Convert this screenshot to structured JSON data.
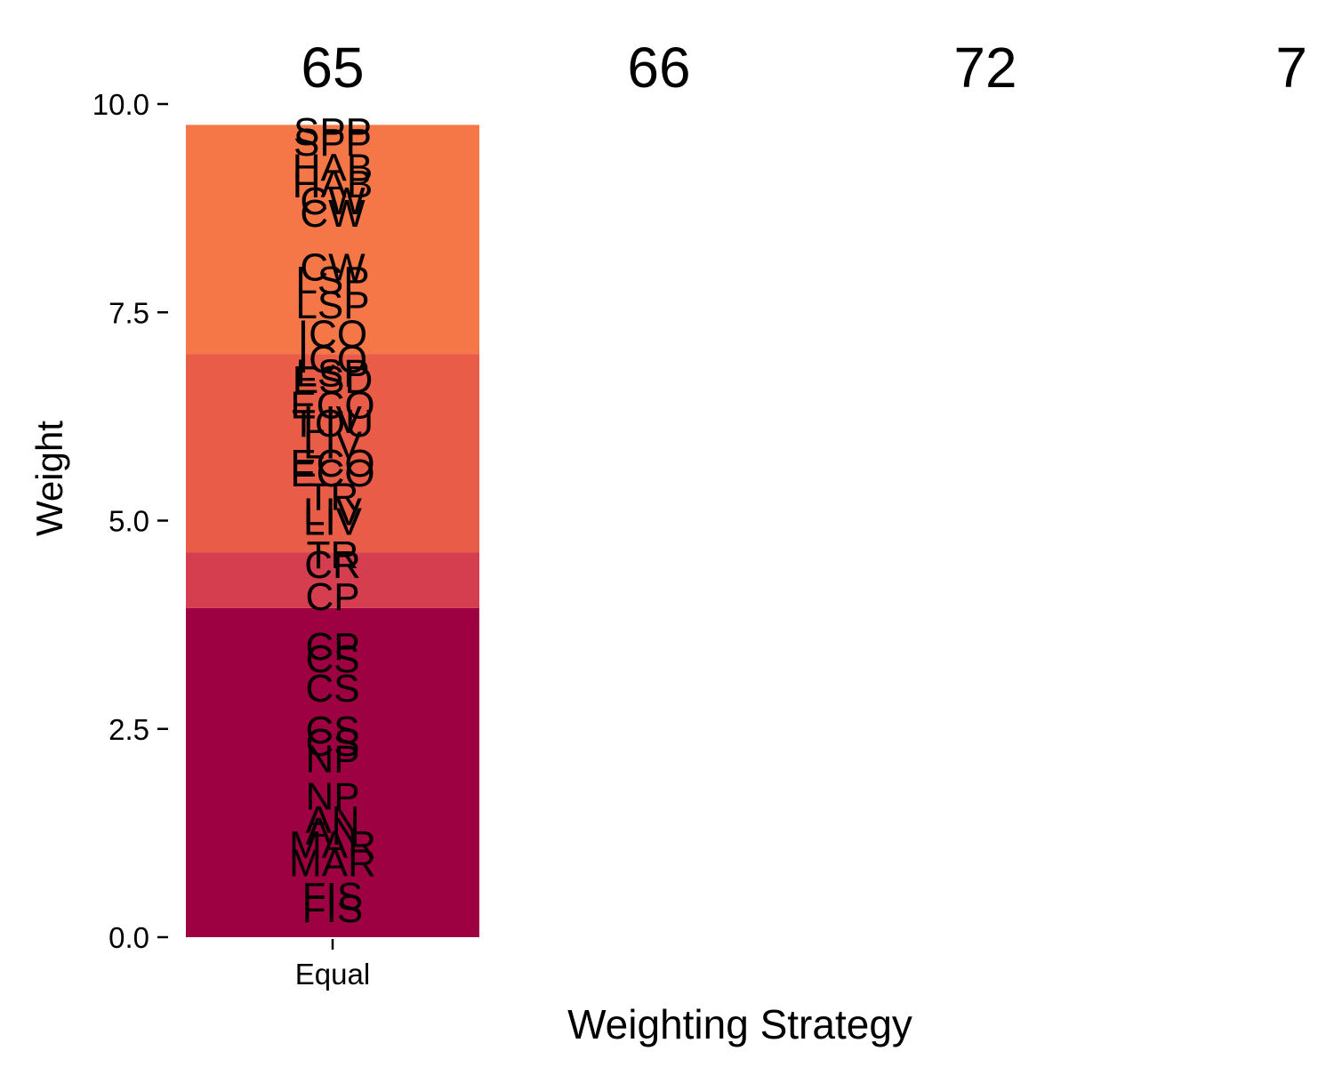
{
  "chart_data": {
    "type": "bar",
    "xlabel": "Weighting Strategy",
    "ylabel": "Weight",
    "ylim": [
      0,
      10
    ],
    "yticks": [
      "0.0",
      "2.5",
      "5.0",
      "7.5",
      "10.0"
    ],
    "ytick_values": [
      0,
      2.5,
      5,
      7.5,
      10
    ],
    "categories": [
      "Equal"
    ],
    "top_labels": [
      "65",
      "66",
      "72",
      "7"
    ],
    "stack_segments": [
      {
        "from": 0.0,
        "to": 3.95,
        "color": "#9e0142"
      },
      {
        "from": 3.95,
        "to": 4.62,
        "color": "#d53e4f"
      },
      {
        "from": 4.62,
        "to": 7.0,
        "color": "#e95c47"
      },
      {
        "from": 7.0,
        "to": 9.75,
        "color": "#f57748"
      }
    ],
    "labels": [
      {
        "text": "FIS",
        "y": 0.35
      },
      {
        "text": "FIS",
        "y": 0.5
      },
      {
        "text": "MAR",
        "y": 0.9
      },
      {
        "text": "MAR",
        "y": 1.12
      },
      {
        "text": "AN",
        "y": 1.28
      },
      {
        "text": "AN",
        "y": 1.42
      },
      {
        "text": "NP",
        "y": 1.7
      },
      {
        "text": "NP",
        "y": 2.15
      },
      {
        "text": "CS",
        "y": 2.35
      },
      {
        "text": "CS",
        "y": 2.5
      },
      {
        "text": "CS",
        "y": 3.0
      },
      {
        "text": "CS",
        "y": 3.35
      },
      {
        "text": "CP",
        "y": 3.5
      },
      {
        "text": "CP",
        "y": 4.1
      },
      {
        "text": "CR",
        "y": 4.48
      },
      {
        "text": "TR",
        "y": 4.6
      },
      {
        "text": "LIV",
        "y": 5.0
      },
      {
        "text": "LIV",
        "y": 5.12
      },
      {
        "text": "TR",
        "y": 5.3
      },
      {
        "text": "ECO",
        "y": 5.58
      },
      {
        "text": "ECO",
        "y": 5.7
      },
      {
        "text": "LIV",
        "y": 5.92
      },
      {
        "text": "LIV",
        "y": 6.22
      },
      {
        "text": "TOU",
        "y": 6.18
      },
      {
        "text": "ECO",
        "y": 6.4
      },
      {
        "text": "ESD",
        "y": 6.7
      },
      {
        "text": "LSP",
        "y": 6.78
      },
      {
        "text": "ICO",
        "y": 6.95
      },
      {
        "text": "ICO",
        "y": 7.25
      },
      {
        "text": "LSP",
        "y": 7.6
      },
      {
        "text": "LSP",
        "y": 7.9
      },
      {
        "text": "CW",
        "y": 8.05
      },
      {
        "text": "CW",
        "y": 8.7
      },
      {
        "text": "CW",
        "y": 8.85
      },
      {
        "text": "HAB",
        "y": 9.05
      },
      {
        "text": "HAB",
        "y": 9.25
      },
      {
        "text": "SPP",
        "y": 9.55
      },
      {
        "text": "SPP",
        "y": 9.68
      }
    ]
  }
}
